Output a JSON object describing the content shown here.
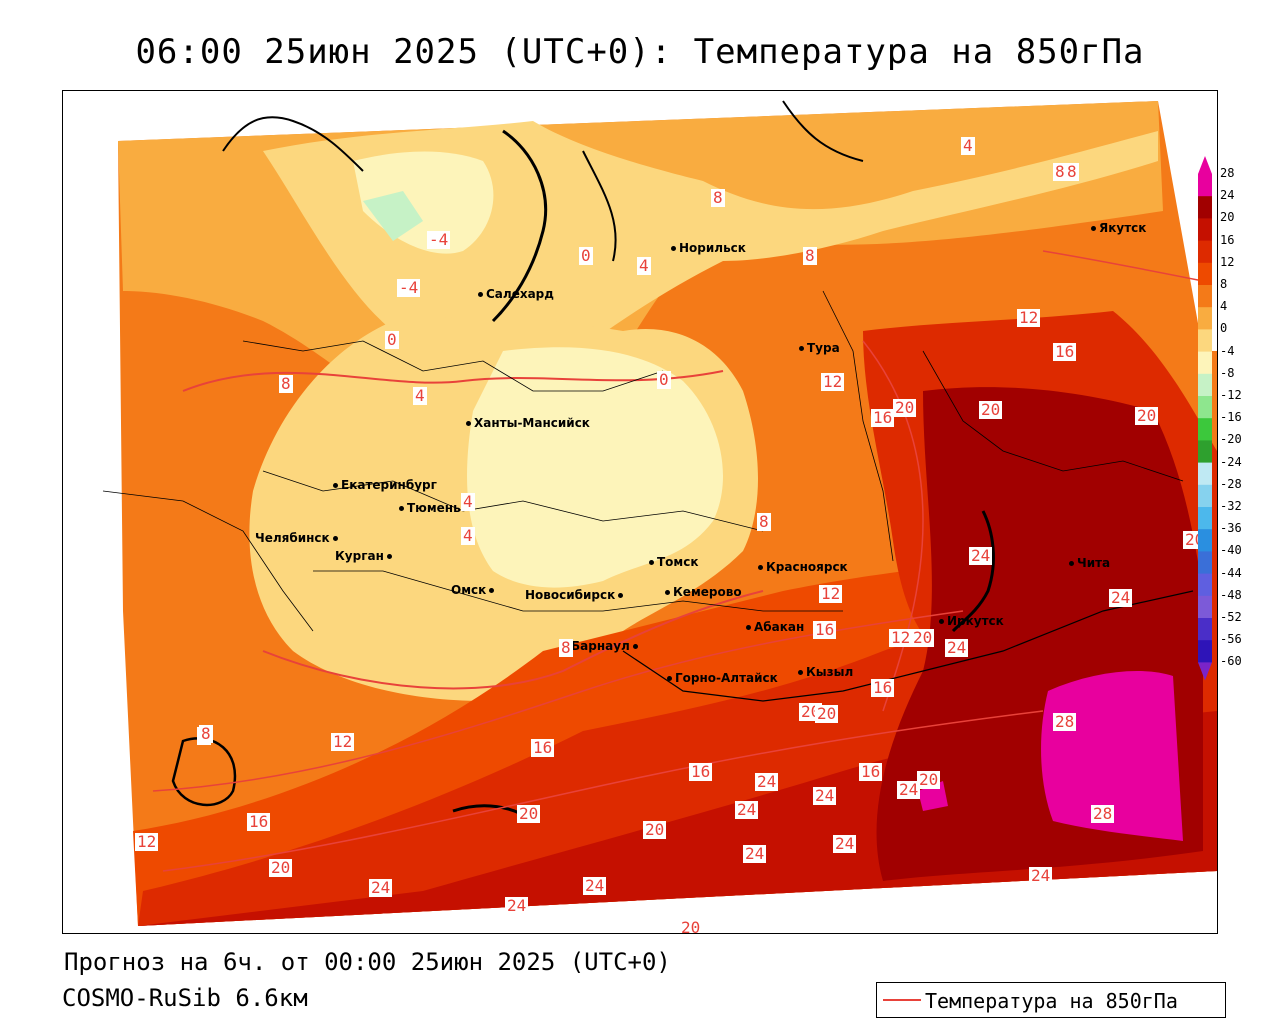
{
  "title": "06:00 25июн 2025 (UTC+0): Температура на 850гПа",
  "footer_forecast": "Прогноз на 6ч. от 00:00 25июн 2025 (UTC+0)",
  "footer_model": "COSMO-RuSib 6.6км",
  "legend_label": "Температура на 850гПа",
  "colorbar": {
    "levels": [
      "28",
      "24",
      "20",
      "16",
      "12",
      "8",
      "4",
      "0",
      "-4",
      "-8",
      "-12",
      "-16",
      "-20",
      "-24",
      "-28",
      "-32",
      "-36",
      "-40",
      "-44",
      "-48",
      "-52",
      "-56",
      "-60"
    ],
    "colors": [
      "#e8009e",
      "#a10000",
      "#c51000",
      "#dd2a00",
      "#ee4a00",
      "#f47a18",
      "#f9ac40",
      "#fcd77e",
      "#fdf4ba",
      "#c6f2c6",
      "#8ee68e",
      "#3cc83c",
      "#2ea02e",
      "#bfe9f3",
      "#86d2ee",
      "#4cb8ec",
      "#2a8fe0",
      "#3a6fd8",
      "#5f5fe0",
      "#7c5ad8",
      "#4a2ec8",
      "#2e14b8",
      "#7a24c8"
    ]
  },
  "cities": [
    {
      "name": "Салехард"
    },
    {
      "name": "Норильск"
    },
    {
      "name": "Якутск"
    },
    {
      "name": "Тура"
    },
    {
      "name": "Ханты-Мансийск"
    },
    {
      "name": "Екатеринбург"
    },
    {
      "name": "Тюмень"
    },
    {
      "name": "Челябинск"
    },
    {
      "name": "Курган"
    },
    {
      "name": "Омск"
    },
    {
      "name": "Новосибирск"
    },
    {
      "name": "Томск"
    },
    {
      "name": "Кемерово"
    },
    {
      "name": "Красноярск"
    },
    {
      "name": "Абакан"
    },
    {
      "name": "Барнаул"
    },
    {
      "name": "Горно-Алтайск"
    },
    {
      "name": "Кызыл"
    },
    {
      "name": "Иркутск"
    },
    {
      "name": "Чита"
    }
  ],
  "contour_labels": [
    "4",
    "8",
    "8",
    "-4",
    "-4",
    "0",
    "4",
    "8",
    "8",
    "12",
    "16",
    "12",
    "16",
    "20",
    "20",
    "20",
    "0",
    "0",
    "4",
    "8",
    "4",
    "4",
    "8",
    "12",
    "16",
    "12",
    "20",
    "24",
    "24",
    "20",
    "24",
    "8",
    "8",
    "12",
    "16",
    "16",
    "16",
    "16",
    "20",
    "24",
    "28",
    "28",
    "16",
    "24",
    "24",
    "20",
    "20",
    "24",
    "20",
    "24",
    "20",
    "24",
    "24",
    "24",
    "20",
    "12",
    "24",
    "24",
    "20",
    "8"
  ]
}
